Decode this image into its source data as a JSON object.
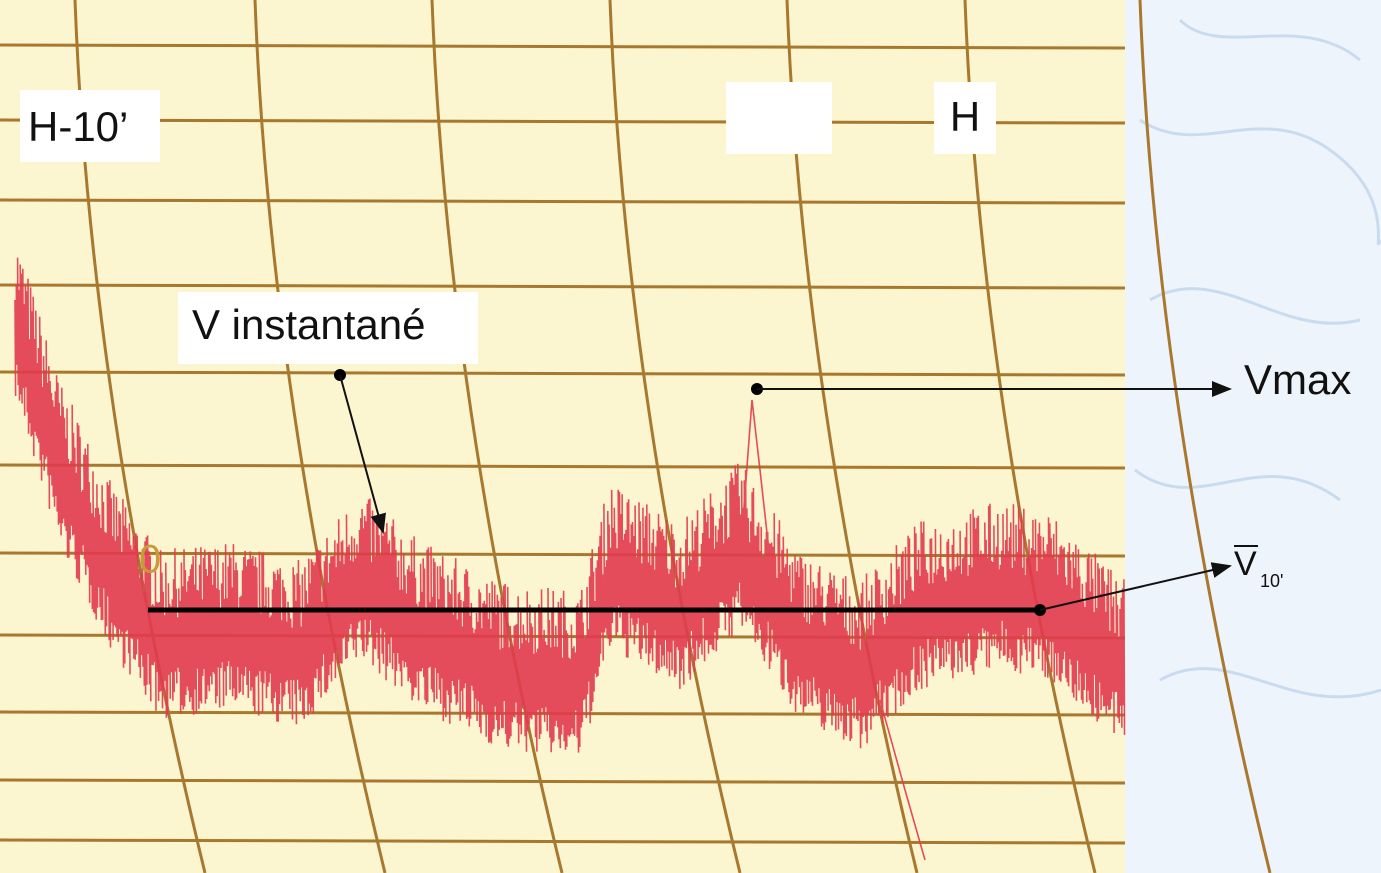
{
  "labels": {
    "start_time": "H-10’",
    "end_time": "H",
    "instant": "V instantané",
    "max": "Vmax",
    "mean": "V",
    "mean_subscript": "10'",
    "zero": "0"
  }
}
